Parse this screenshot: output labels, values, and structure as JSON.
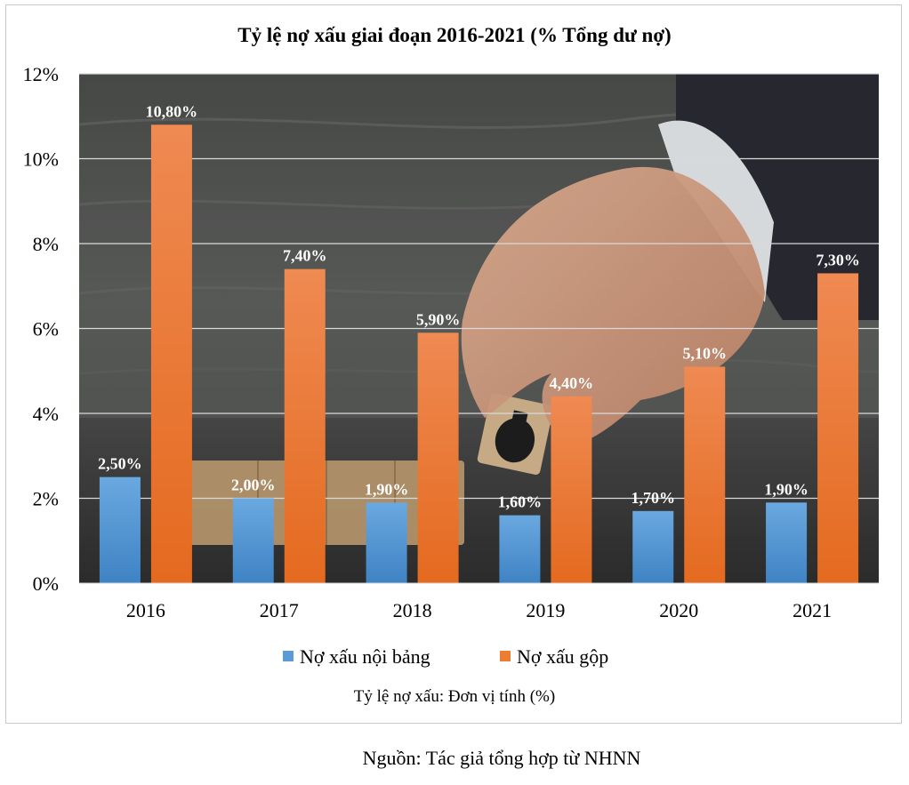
{
  "chart_data": {
    "type": "bar",
    "title": "Tỷ lệ nợ xấu giai đoạn 2016-2021 (% Tổng dư nợ)",
    "categories": [
      "2016",
      "2017",
      "2018",
      "2019",
      "2020",
      "2021"
    ],
    "series": [
      {
        "name": "Nợ xấu nội bảng",
        "values": [
          2.5,
          2.0,
          1.9,
          1.6,
          1.7,
          1.9
        ],
        "labels": [
          "2,50%",
          "2,00%",
          "1,90%",
          "1,60%",
          "1,70%",
          "1,90%"
        ],
        "color": "#5b9bd5"
      },
      {
        "name": "Nợ xấu gộp",
        "values": [
          10.8,
          7.4,
          5.9,
          4.4,
          5.1,
          7.3
        ],
        "labels": [
          "10,80%",
          "7,40%",
          "5,90%",
          "4,40%",
          "5,10%",
          "7,30%"
        ],
        "color": "#ed7d31"
      }
    ],
    "yticks": [
      0,
      2,
      4,
      6,
      8,
      10,
      12
    ],
    "ytick_labels": [
      "0%",
      "2%",
      "4%",
      "6%",
      "8%",
      "10%",
      "12%"
    ],
    "ylim": [
      0,
      12
    ],
    "grid": true,
    "legend_position": "bottom",
    "note": "Tỷ lệ nợ xấu: Đơn vị tính (%)",
    "background": "photo of a hand holding a money-bag block over wooden DEBT letter blocks"
  },
  "source": "Nguồn: Tác giả tổng hợp từ NHNN"
}
